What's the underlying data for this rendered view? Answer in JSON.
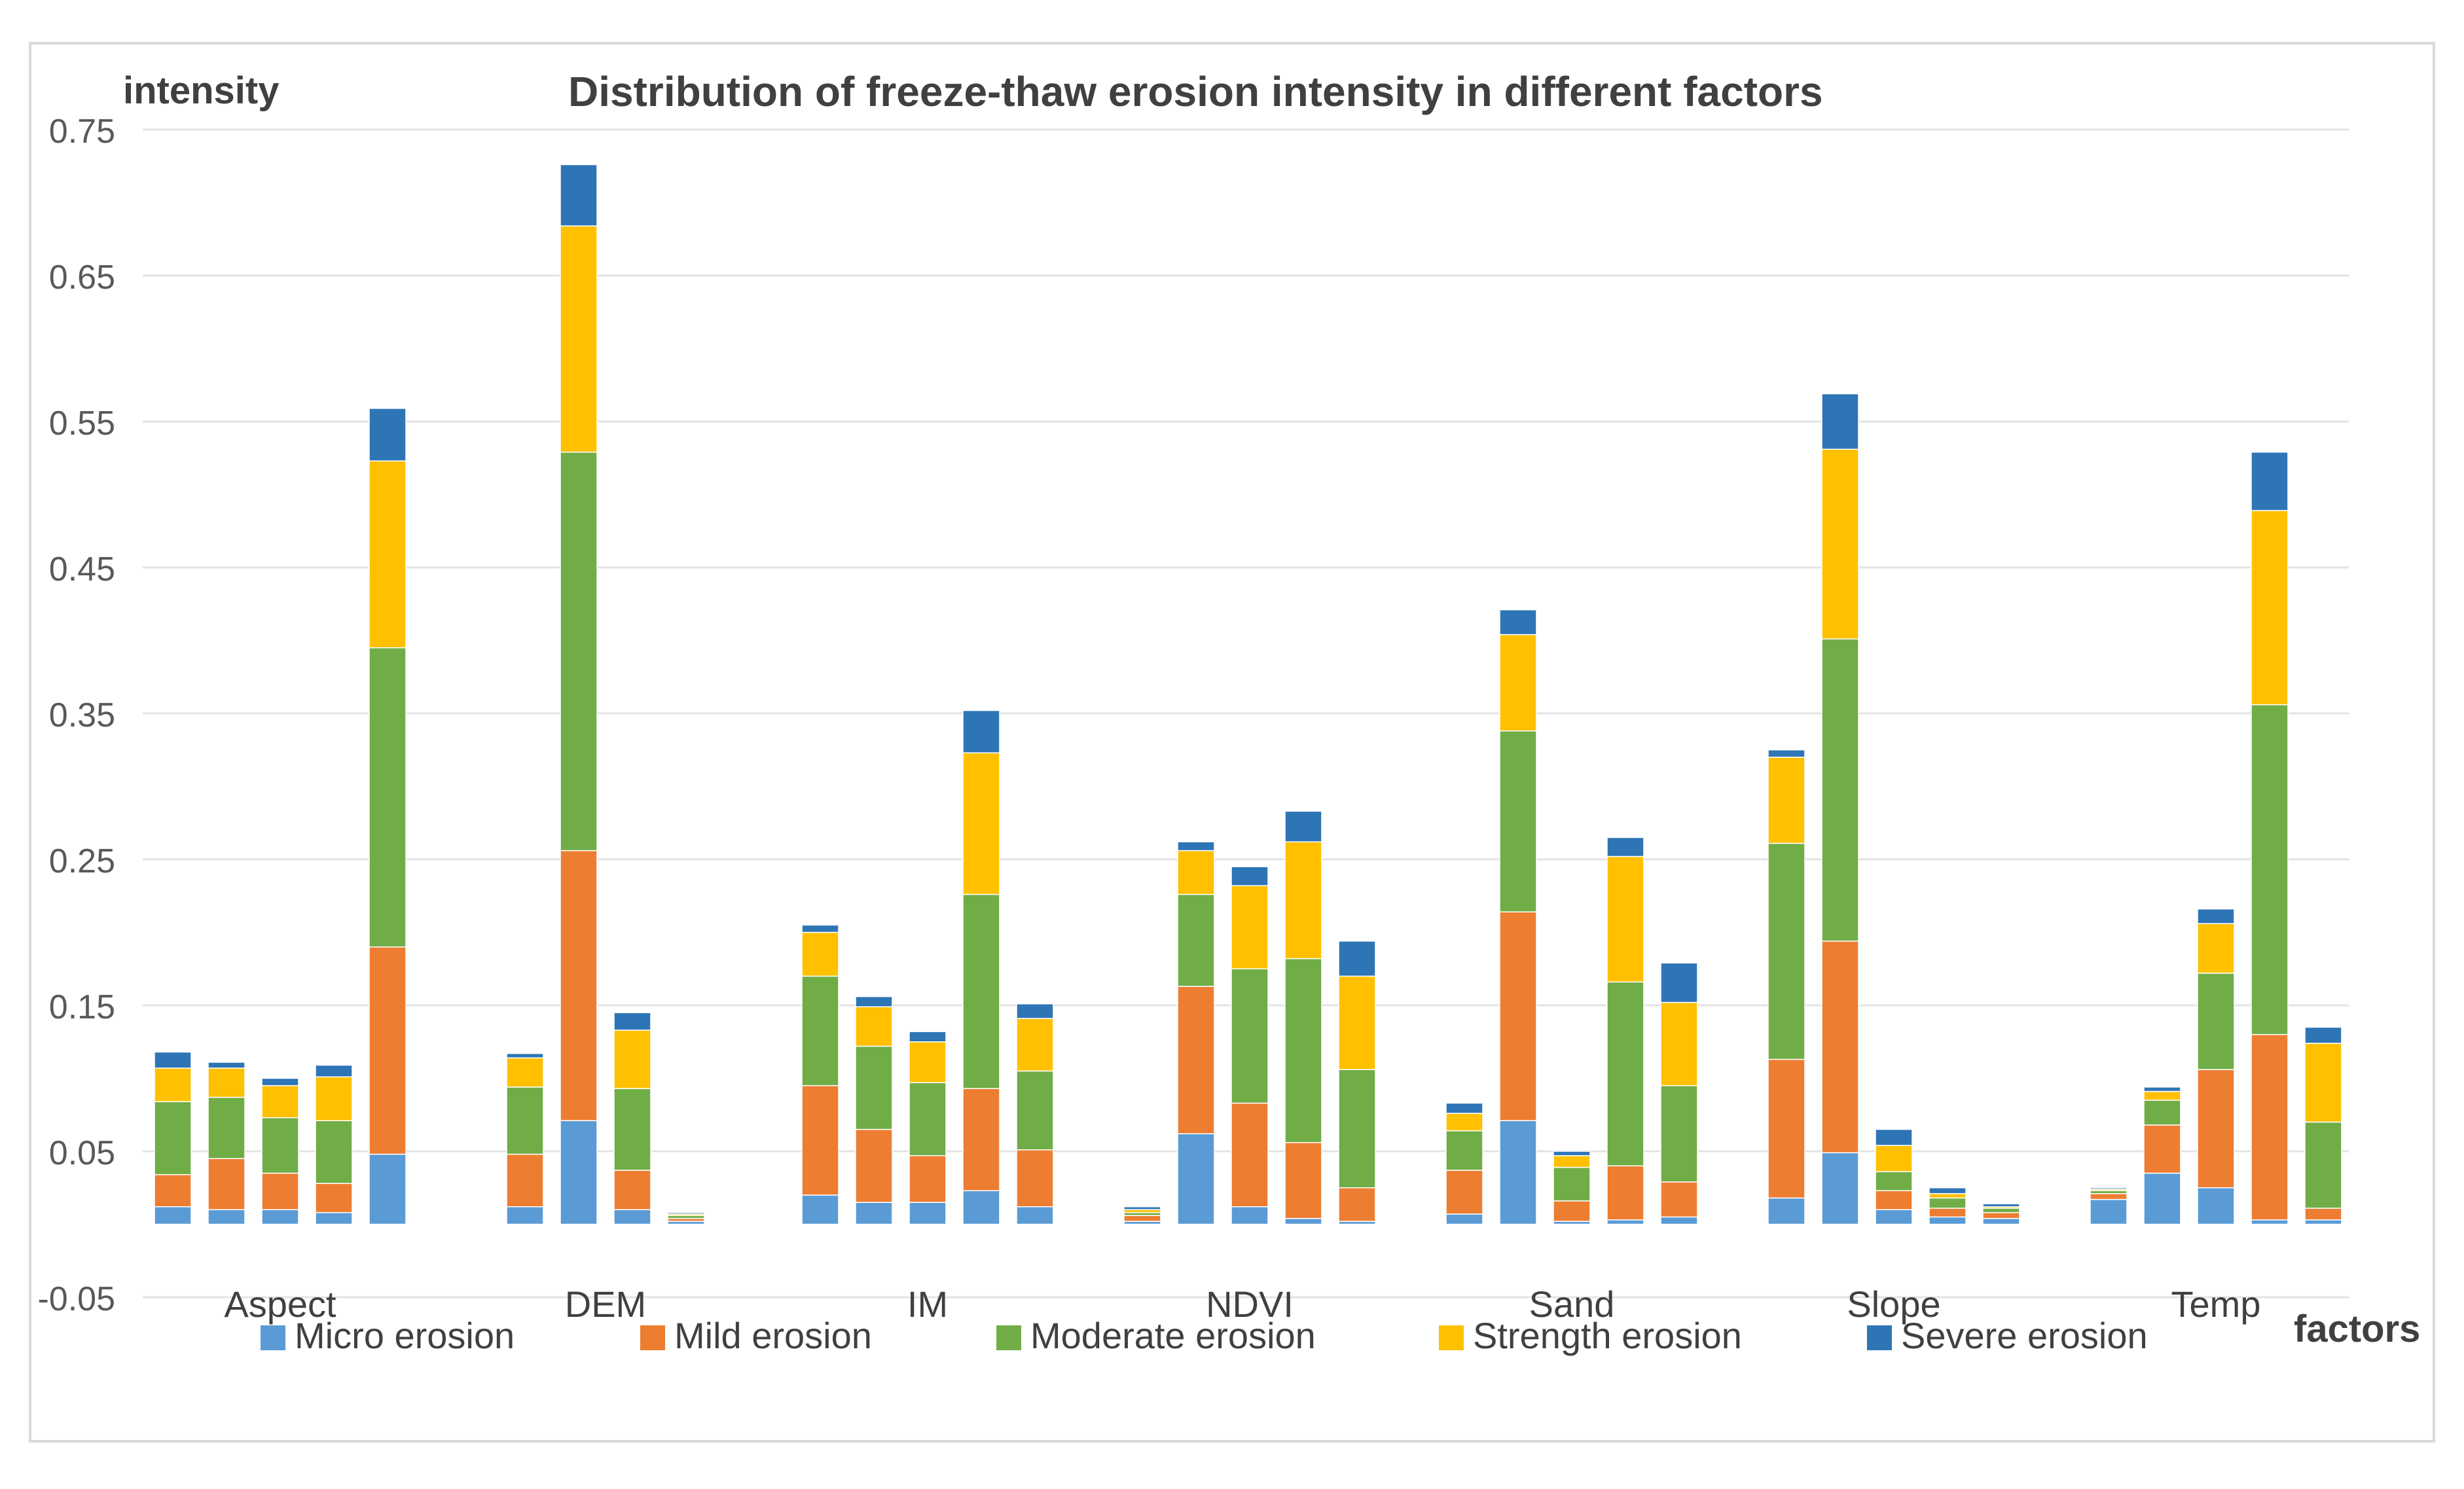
{
  "chart_data": {
    "type": "bar",
    "stacked": true,
    "title": "Distribution of freeze-thaw erosion intensity in different factors",
    "ylabel": "intensity",
    "xlabel": "factors",
    "ylim": [
      -0.05,
      0.75
    ],
    "yticks": [
      0.75,
      0.65,
      0.55,
      0.45,
      0.35,
      0.25,
      0.15,
      0.05,
      -0.05
    ],
    "ytick_labels": [
      "0.75",
      "0.65",
      "0.55",
      "0.45",
      "0.35",
      "0.25",
      "0.15",
      "0.05",
      "-0.05"
    ],
    "grid": true,
    "legend_position": "bottom",
    "categories": [
      "Aspect",
      "DEM",
      "IM",
      "NDVI",
      "Sand",
      "Slope",
      "Temp"
    ],
    "series": [
      {
        "name": "Micro erosion",
        "color": "#5b9bd5"
      },
      {
        "name": "Mild erosion",
        "color": "#ed7d31"
      },
      {
        "name": "Moderate erosion",
        "color": "#70ad47"
      },
      {
        "name": "Strength erosion",
        "color": "#ffc000"
      },
      {
        "name": "Severe erosion",
        "color": "#2e75b6"
      }
    ],
    "groups": [
      {
        "category": "Aspect",
        "bars": [
          [
            0.012,
            0.022,
            0.05,
            0.023,
            0.011
          ],
          [
            0.01,
            0.035,
            0.042,
            0.02,
            0.004
          ],
          [
            0.01,
            0.025,
            0.038,
            0.022,
            0.005
          ],
          [
            0.008,
            0.02,
            0.043,
            0.03,
            0.008
          ],
          [
            0.048,
            0.142,
            0.205,
            0.128,
            0.036
          ]
        ]
      },
      {
        "category": "DEM",
        "bars": [
          [
            0.012,
            0.036,
            0.046,
            0.02,
            0.003
          ],
          [
            0.071,
            0.185,
            0.273,
            0.155,
            0.042
          ],
          [
            0.01,
            0.027,
            0.056,
            0.04,
            0.012
          ],
          [
            0.002,
            0.002,
            0.002,
            0.001,
            0.001
          ]
        ]
      },
      {
        "category": "IM",
        "bars": [
          [
            0.02,
            0.075,
            0.075,
            0.03,
            0.005
          ],
          [
            0.015,
            0.05,
            0.057,
            0.027,
            0.007
          ],
          [
            0.015,
            0.032,
            0.05,
            0.028,
            0.007
          ],
          [
            0.023,
            0.07,
            0.133,
            0.097,
            0.029
          ],
          [
            0.012,
            0.039,
            0.054,
            0.036,
            0.01
          ]
        ]
      },
      {
        "category": "NDVI",
        "bars": [
          [
            0.002,
            0.004,
            0.002,
            0.002,
            0.002
          ],
          [
            0.062,
            0.101,
            0.063,
            0.03,
            0.006
          ],
          [
            0.012,
            0.071,
            0.092,
            0.057,
            0.013
          ],
          [
            0.004,
            0.052,
            0.126,
            0.08,
            0.021
          ],
          [
            0.002,
            0.023,
            0.081,
            0.064,
            0.024
          ]
        ]
      },
      {
        "category": "Sand",
        "bars": [
          [
            0.007,
            0.03,
            0.027,
            0.012,
            0.007
          ],
          [
            0.071,
            0.143,
            0.124,
            0.066,
            0.017
          ],
          [
            0.002,
            0.014,
            0.023,
            0.008,
            0.003
          ],
          [
            0.003,
            0.037,
            0.126,
            0.086,
            0.013
          ],
          [
            0.005,
            0.024,
            0.066,
            0.057,
            0.027
          ]
        ]
      },
      {
        "category": "Slope",
        "bars": [
          [
            0.018,
            0.095,
            0.148,
            0.059,
            0.005
          ],
          [
            0.049,
            0.145,
            0.207,
            0.13,
            0.038
          ],
          [
            0.01,
            0.013,
            0.013,
            0.018,
            0.011
          ],
          [
            0.005,
            0.006,
            0.007,
            0.003,
            0.004
          ],
          [
            0.004,
            0.004,
            0.003,
            0.001,
            0.002
          ]
        ]
      },
      {
        "category": "Temp",
        "bars": [
          [
            0.017,
            0.004,
            0.002,
            0.001,
            0.001
          ],
          [
            0.035,
            0.033,
            0.017,
            0.006,
            0.003
          ],
          [
            0.025,
            0.081,
            0.066,
            0.034,
            0.01
          ],
          [
            0.003,
            0.127,
            0.226,
            0.133,
            0.04
          ],
          [
            0.003,
            0.008,
            0.059,
            0.054,
            0.011
          ]
        ]
      }
    ]
  }
}
